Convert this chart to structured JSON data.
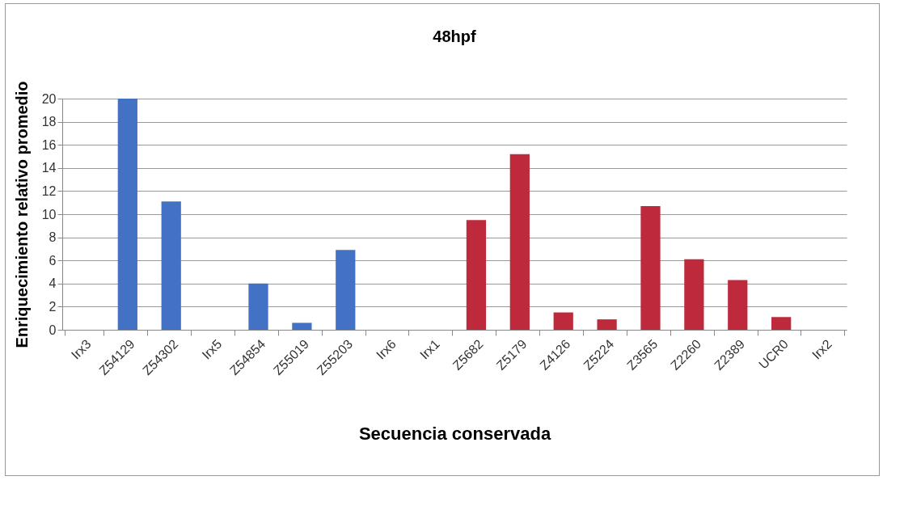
{
  "chart_data": {
    "type": "bar",
    "title": "48hpf",
    "xlabel": "Secuencia conservada",
    "ylabel": "Enriquecimiento relativo promedio",
    "categories": [
      "Irx3",
      "Z54129",
      "Z54302",
      "Irx5",
      "Z54854",
      "Z55019",
      "Z55203",
      "Irx6",
      "Irx1",
      "Z5682",
      "Z5179",
      "Z4126",
      "Z5224",
      "Z3565",
      "Z2260",
      "Z2389",
      "UCR0",
      "Irx2"
    ],
    "values": [
      0,
      20,
      11.1,
      0,
      4.0,
      0.6,
      6.9,
      0,
      0,
      9.5,
      15.2,
      1.5,
      0.9,
      10.7,
      6.1,
      4.3,
      1.1,
      0
    ],
    "colors": [
      "#4372c4",
      "#4372c4",
      "#4372c4",
      "#4372c4",
      "#4372c4",
      "#4372c4",
      "#4372c4",
      "#4372c4",
      "#be2a3c",
      "#be2a3c",
      "#be2a3c",
      "#be2a3c",
      "#be2a3c",
      "#be2a3c",
      "#be2a3c",
      "#be2a3c",
      "#be2a3c",
      "#be2a3c"
    ],
    "ylim": [
      0,
      20
    ],
    "yticks": [
      0,
      2,
      4,
      6,
      8,
      10,
      12,
      14,
      16,
      18,
      20
    ],
    "grid": "y"
  }
}
